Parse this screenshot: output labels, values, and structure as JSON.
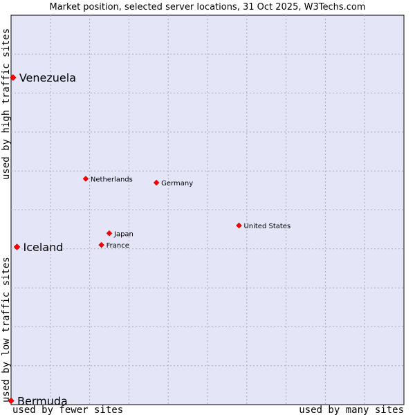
{
  "chart_data": {
    "type": "scatter",
    "title": "Market position, selected server locations, 31 Oct 2025, W3Techs.com",
    "xlabel_left": "used by fewer sites",
    "xlabel_right": "used by many sites",
    "ylabel_bottom": "used by low traffic sites",
    "ylabel_top": "used by high traffic sites",
    "xlim": [
      0,
      10
    ],
    "ylim": [
      0,
      10
    ],
    "grid": true,
    "points": [
      {
        "label": "Venezuela",
        "x": 0.05,
        "y": 8.4,
        "size": "large"
      },
      {
        "label": "Netherlands",
        "x": 1.9,
        "y": 5.8,
        "size": "small"
      },
      {
        "label": "Germany",
        "x": 3.7,
        "y": 5.7,
        "size": "small"
      },
      {
        "label": "United States",
        "x": 5.8,
        "y": 4.6,
        "size": "small"
      },
      {
        "label": "Japan",
        "x": 2.5,
        "y": 4.4,
        "size": "small"
      },
      {
        "label": "Iceland",
        "x": 0.15,
        "y": 4.05,
        "size": "large"
      },
      {
        "label": "France",
        "x": 2.3,
        "y": 4.1,
        "size": "small"
      },
      {
        "label": "Bermuda",
        "x": 0.0,
        "y": 0.1,
        "size": "large"
      }
    ]
  },
  "colors": {
    "plot_bg": "#e4e6f8",
    "grid": "#a8a8b8",
    "marker": "#ff0000"
  }
}
